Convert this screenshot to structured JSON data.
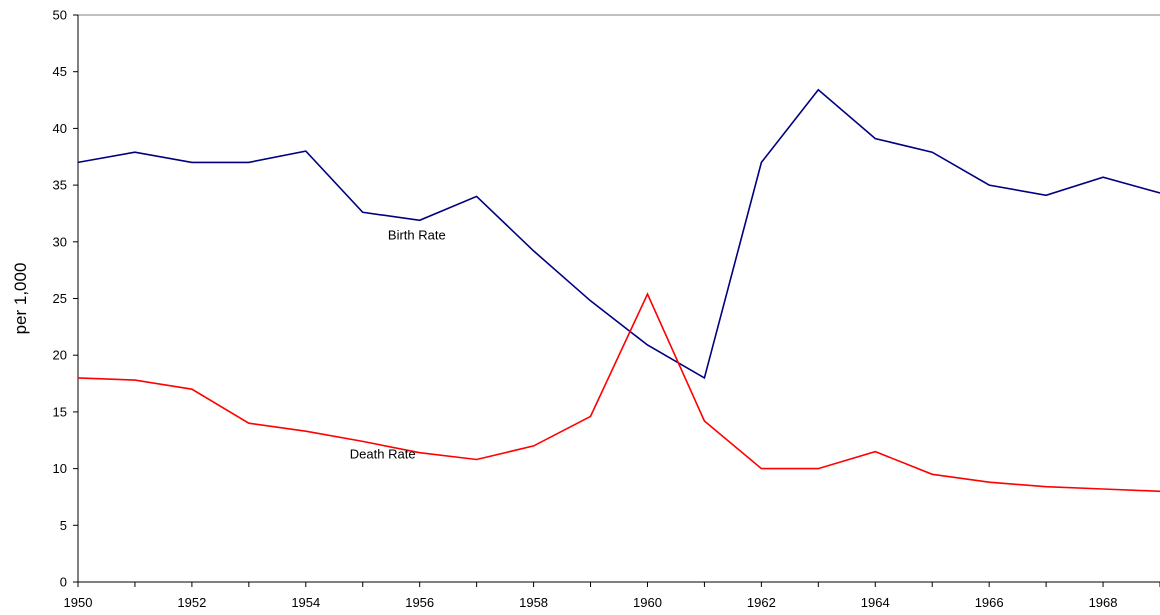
{
  "chart_data": {
    "type": "line",
    "title": "",
    "xlabel": "",
    "ylabel": "per 1,000",
    "xlim": [
      1950,
      1969
    ],
    "ylim": [
      0,
      50
    ],
    "y_ticks": [
      0,
      5,
      10,
      15,
      20,
      25,
      30,
      35,
      40,
      45,
      50
    ],
    "x_ticks": [
      1950,
      1952,
      1954,
      1956,
      1958,
      1960,
      1962,
      1964,
      1966,
      1968
    ],
    "grid": false,
    "legend": "none",
    "x": [
      1950,
      1951,
      1952,
      1953,
      1954,
      1955,
      1956,
      1957,
      1958,
      1959,
      1960,
      1961,
      1962,
      1963,
      1964,
      1965,
      1966,
      1967,
      1968,
      1969
    ],
    "series": [
      {
        "name": "Birth Rate",
        "color": "#000080",
        "values": [
          37.0,
          37.9,
          37.0,
          37.0,
          38.0,
          32.6,
          31.9,
          34.0,
          29.2,
          24.8,
          20.9,
          18.0,
          37.0,
          43.4,
          39.1,
          37.9,
          35.0,
          34.1,
          35.7,
          34.3
        ]
      },
      {
        "name": "Death Rate",
        "color": "#ff0000",
        "values": [
          18.0,
          17.8,
          17.0,
          14.0,
          13.3,
          12.4,
          11.4,
          10.8,
          12.0,
          14.6,
          25.4,
          14.2,
          10.0,
          10.0,
          11.5,
          9.5,
          8.8,
          8.4,
          8.2,
          8.0
        ]
      }
    ]
  }
}
